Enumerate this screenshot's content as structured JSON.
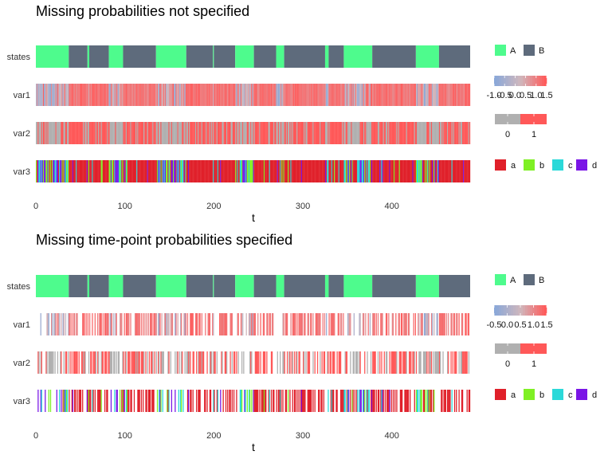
{
  "chart_data": [
    {
      "type": "heatmap",
      "title": "Missing probabilities not specified",
      "xlabel": "t",
      "xlim": [
        0,
        488
      ],
      "x_ticks": [
        "0",
        "100",
        "200",
        "300",
        "400"
      ],
      "rows": [
        "states",
        "var1",
        "var2",
        "var3"
      ],
      "states_segments": [
        {
          "state": "A",
          "start": 0,
          "end": 37
        },
        {
          "state": "B",
          "start": 37,
          "end": 58
        },
        {
          "state": "A",
          "start": 58,
          "end": 60
        },
        {
          "state": "B",
          "start": 60,
          "end": 82
        },
        {
          "state": "A",
          "start": 82,
          "end": 98
        },
        {
          "state": "B",
          "start": 98,
          "end": 135
        },
        {
          "state": "A",
          "start": 135,
          "end": 169
        },
        {
          "state": "B",
          "start": 169,
          "end": 199
        },
        {
          "state": "A",
          "start": 199,
          "end": 200
        },
        {
          "state": "B",
          "start": 200,
          "end": 224
        },
        {
          "state": "A",
          "start": 224,
          "end": 245
        },
        {
          "state": "B",
          "start": 245,
          "end": 270
        },
        {
          "state": "A",
          "start": 270,
          "end": 279
        },
        {
          "state": "B",
          "start": 279,
          "end": 325
        },
        {
          "state": "A",
          "start": 325,
          "end": 329
        },
        {
          "state": "B",
          "start": 329,
          "end": 346
        },
        {
          "state": "A",
          "start": 346,
          "end": 378
        },
        {
          "state": "B",
          "start": 378,
          "end": 427
        },
        {
          "state": "A",
          "start": 427,
          "end": 453
        },
        {
          "state": "B",
          "start": 453,
          "end": 488
        }
      ],
      "legend_states": {
        "labels": [
          "A",
          "B"
        ],
        "colors": [
          "#4efb8d",
          "#5e6b7c"
        ]
      },
      "legend_var1": {
        "labels": [
          "-1.0",
          "-0.5",
          "0.0",
          "0.5",
          "1.0",
          "1.5"
        ],
        "low": "#8ba8d8",
        "mid": "#cfb7bd",
        "high": "#ff5a5a"
      },
      "legend_var2": {
        "labels": [
          "0",
          "1"
        ],
        "colors": [
          "#b0b0b0",
          "#ff5858"
        ]
      },
      "legend_var3": {
        "labels": [
          "a",
          "b",
          "c",
          "d"
        ],
        "colors": [
          "#e0202a",
          "#7ff024",
          "#2bd9d9",
          "#7a16e6"
        ]
      },
      "missing_fraction": 0
    },
    {
      "type": "heatmap",
      "title": "Missing time-point probabilities specified",
      "xlabel": "t",
      "xlim": [
        0,
        488
      ],
      "x_ticks": [
        "0",
        "100",
        "200",
        "300",
        "400"
      ],
      "rows": [
        "states",
        "var1",
        "var2",
        "var3"
      ],
      "states_segments": "same as panel 1",
      "legend_states": {
        "labels": [
          "A",
          "B"
        ],
        "colors": [
          "#4efb8d",
          "#5e6b7c"
        ]
      },
      "legend_var1": {
        "labels": [
          "-0.5",
          "0.0",
          "0.5",
          "1.0",
          "1.5"
        ],
        "low": "#8ba8d8",
        "mid": "#cfb7bd",
        "high": "#ff5a5a"
      },
      "legend_var2": {
        "labels": [
          "0",
          "1"
        ],
        "colors": [
          "#b0b0b0",
          "#ff5858"
        ]
      },
      "legend_var3": {
        "labels": [
          "a",
          "b",
          "c",
          "d"
        ],
        "colors": [
          "#e0202a",
          "#7ff024",
          "#2bd9d9",
          "#7a16e6"
        ]
      },
      "missing_fraction": 0.45
    }
  ]
}
